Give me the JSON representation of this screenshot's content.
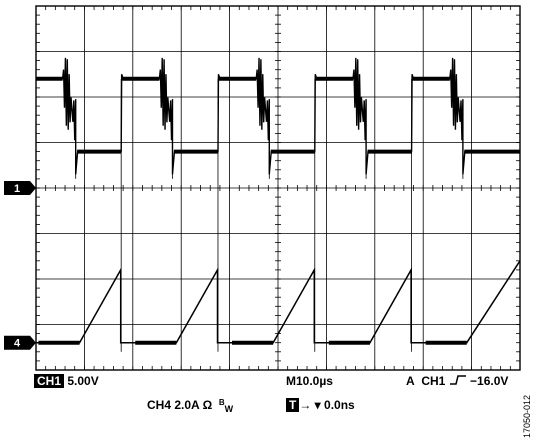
{
  "figure_id": "17050-012",
  "channels": {
    "ch1_marker": "1",
    "ch4_marker": "4"
  },
  "readouts": {
    "ch1_badge": "CH1",
    "ch1_scale": "5.00V",
    "ch4_scale": "CH4 2.0A",
    "ch4_ohm": "Ω",
    "ch4_bw_b": "B",
    "ch4_bw_w": "W",
    "timebase": "M10.0µs",
    "trigger_mode": "A",
    "trigger_source": "CH1",
    "trigger_slope_icon": "rising-edge-icon",
    "trigger_level": "−16.0V",
    "trigger_badge": "T",
    "trigger_position_arrow": "→ ▾",
    "trigger_position": "0.0ns"
  },
  "colors": {
    "trace": "#000000",
    "grid": "#000000",
    "background": "#ffffff"
  },
  "chart_data": {
    "type": "line",
    "grid": {
      "divisions_x": 10,
      "divisions_y": 8,
      "on": true
    },
    "x_unit": "div",
    "x_range": [
      0,
      10
    ],
    "series": [
      {
        "name": "CH1",
        "note": "square-like switch-node waveform with ringing on falling edge",
        "period_div": 2.0,
        "high_level_div": 6.4,
        "low_level_div": 4.8,
        "segments": [
          {
            "x": 0.0,
            "y": 6.4
          },
          {
            "x": 0.55,
            "y": 6.4
          },
          {
            "x": 0.8,
            "y": 4.8
          },
          {
            "x": 1.75,
            "y": 4.8
          },
          {
            "x": 1.77,
            "y": 6.4
          },
          {
            "x": 2.55,
            "y": 6.4
          },
          {
            "x": 2.8,
            "y": 4.8
          },
          {
            "x": 3.75,
            "y": 4.8
          },
          {
            "x": 3.77,
            "y": 6.4
          },
          {
            "x": 4.55,
            "y": 6.4
          },
          {
            "x": 4.8,
            "y": 4.8
          },
          {
            "x": 5.75,
            "y": 4.8
          },
          {
            "x": 5.77,
            "y": 6.4
          },
          {
            "x": 6.55,
            "y": 6.4
          },
          {
            "x": 6.8,
            "y": 4.8
          },
          {
            "x": 7.75,
            "y": 4.8
          },
          {
            "x": 7.77,
            "y": 6.4
          },
          {
            "x": 8.55,
            "y": 6.4
          },
          {
            "x": 8.8,
            "y": 4.8
          },
          {
            "x": 10.0,
            "y": 4.8
          }
        ]
      },
      {
        "name": "CH4",
        "note": "inductor current ramp (sawtooth) rising from baseline",
        "baseline_div": 0.6,
        "peak_div": 2.2,
        "ramps": [
          {
            "start": 0.9,
            "end": 1.75
          },
          {
            "start": 2.9,
            "end": 3.75
          },
          {
            "start": 4.9,
            "end": 5.75
          },
          {
            "start": 6.9,
            "end": 7.75
          },
          {
            "start": 8.9,
            "end": 10.0
          }
        ]
      }
    ],
    "markers": [
      {
        "label": "1",
        "y_div": 4.0
      },
      {
        "label": "4",
        "y_div": 0.6
      }
    ]
  }
}
